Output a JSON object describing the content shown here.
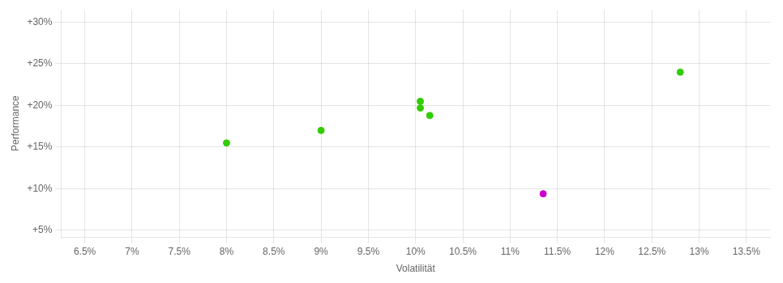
{
  "chart_data": {
    "type": "scatter",
    "xlabel": "Volatilität",
    "ylabel": "Performance",
    "xlim": [
      0.0625,
      0.1375
    ],
    "ylim": [
      0.042,
      0.315
    ],
    "xticks": [
      {
        "value": 0.065,
        "label": "6.5%"
      },
      {
        "value": 0.07,
        "label": "7%"
      },
      {
        "value": 0.075,
        "label": "7.5%"
      },
      {
        "value": 0.08,
        "label": "8%"
      },
      {
        "value": 0.085,
        "label": "8.5%"
      },
      {
        "value": 0.09,
        "label": "9%"
      },
      {
        "value": 0.095,
        "label": "9.5%"
      },
      {
        "value": 0.1,
        "label": "10%"
      },
      {
        "value": 0.105,
        "label": "10.5%"
      },
      {
        "value": 0.11,
        "label": "11%"
      },
      {
        "value": 0.115,
        "label": "11.5%"
      },
      {
        "value": 0.12,
        "label": "12%"
      },
      {
        "value": 0.125,
        "label": "12.5%"
      },
      {
        "value": 0.13,
        "label": "13%"
      },
      {
        "value": 0.135,
        "label": "13.5%"
      }
    ],
    "yticks": [
      {
        "value": 0.05,
        "label": "+5%"
      },
      {
        "value": 0.1,
        "label": "+10%"
      },
      {
        "value": 0.15,
        "label": "+15%"
      },
      {
        "value": 0.2,
        "label": "+20%"
      },
      {
        "value": 0.25,
        "label": "+25%"
      },
      {
        "value": 0.3,
        "label": "+30%"
      }
    ],
    "grid": true,
    "series": [
      {
        "color": "#33cc00",
        "x": [
          0.08,
          0.09,
          0.1005,
          0.1005,
          0.1015,
          0.128
        ],
        "values": [
          0.155,
          0.17,
          0.205,
          0.197,
          0.188,
          0.24
        ]
      },
      {
        "color": "#cc00cc",
        "x": [
          0.1135
        ],
        "values": [
          0.094
        ]
      }
    ]
  }
}
